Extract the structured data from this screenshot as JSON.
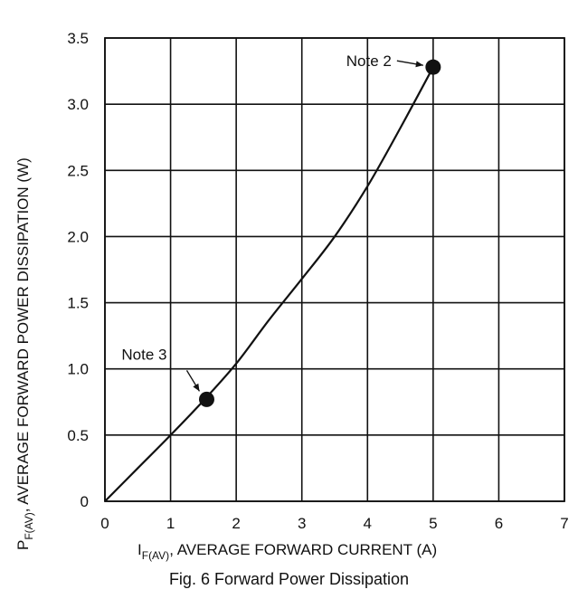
{
  "chart_data": {
    "type": "line",
    "xlabel_main": "I",
    "xlabel_sub": "F(AV)",
    "xlabel_rest": ", AVERAGE FORWARD CURRENT (A)",
    "ylabel_main": "P",
    "ylabel_sub": "F(AV)",
    "ylabel_rest": ", AVERAGE FORWARD POWER DISSIPATION (W)",
    "xlim": [
      0,
      7
    ],
    "ylim": [
      0,
      3.5
    ],
    "x_ticks": [
      0,
      1,
      2,
      3,
      4,
      5,
      6,
      7
    ],
    "y_ticks": [
      0,
      0.5,
      1.0,
      1.5,
      2.0,
      2.5,
      3.0,
      3.5
    ],
    "x_tick_labels": [
      "0",
      "1",
      "2",
      "3",
      "4",
      "5",
      "6",
      "7"
    ],
    "y_tick_labels": [
      "0",
      "0.5",
      "1.0",
      "1.5",
      "2.0",
      "2.5",
      "3.0",
      "3.5"
    ],
    "grid": true,
    "series": [
      {
        "x": [
          0,
          0.5,
          1.0,
          1.5,
          2.0,
          2.5,
          3.0,
          3.5,
          4.0,
          4.5,
          5.0
        ],
        "y": [
          0,
          0.25,
          0.5,
          0.76,
          1.04,
          1.37,
          1.68,
          2.0,
          2.38,
          2.82,
          3.28
        ]
      }
    ],
    "markers": [
      {
        "x": 1.55,
        "y": 0.77,
        "label": "Note 3"
      },
      {
        "x": 5.0,
        "y": 3.28,
        "label": "Note 2"
      }
    ]
  },
  "caption": "Fig. 6  Forward Power Dissipation"
}
